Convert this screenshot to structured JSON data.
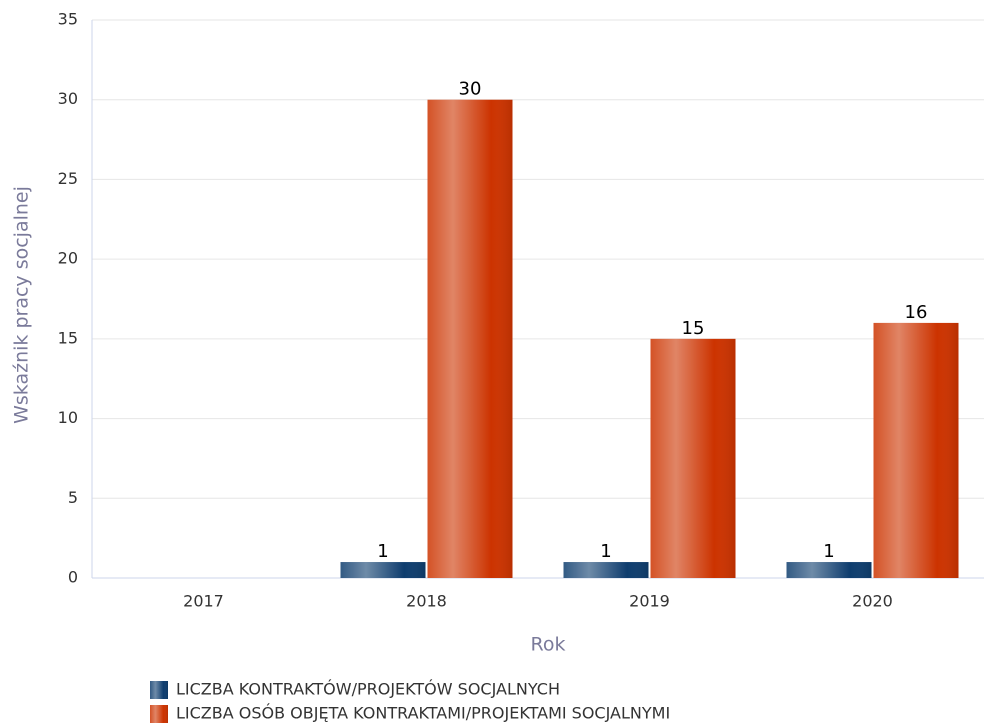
{
  "chart_data": {
    "type": "bar",
    "x_label": "Rok",
    "y_label": "Wskaźnik pracy socjalnej",
    "categories": [
      "2017",
      "2018",
      "2019",
      "2020"
    ],
    "series": [
      {
        "name": "LICZBA KONTRAKTÓW/PROJEKTÓW SOCJALNYCH",
        "color": "#0e3d6e",
        "values": [
          null,
          1,
          1,
          1
        ]
      },
      {
        "name": "LICZBA OSÓB OBJĘTA KONTRAKTAMI/PROJEKTAMI SOCJALNYMI",
        "color": "#cc3300",
        "values": [
          null,
          30,
          15,
          16
        ]
      }
    ],
    "ylim": [
      0,
      35
    ],
    "yticks": [
      0,
      5,
      10,
      15,
      20,
      25,
      30,
      35
    ],
    "grid": true,
    "legend": "bottom"
  }
}
